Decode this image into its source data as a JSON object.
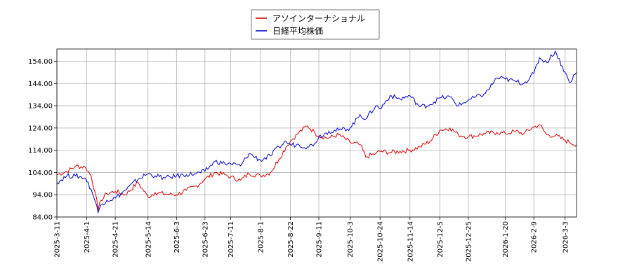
{
  "chart_data": {
    "type": "line",
    "title": "",
    "xlabel": "",
    "ylabel": "",
    "ylim": [
      84.0,
      159.5
    ],
    "xlim": [
      "2025-03-11",
      "2026-03-11"
    ],
    "grid": true,
    "legend_position": "top-center",
    "yticks": [
      "84.00",
      "94.00",
      "104.00",
      "114.00",
      "124.00",
      "134.00",
      "144.00",
      "154.00"
    ],
    "xticks": [
      "2025-3-11",
      "2025-4-1",
      "2025-4-21",
      "2025-5-14",
      "2025-6-3",
      "2025-6-23",
      "2025-7-11",
      "2025-8-1",
      "2025-8-22",
      "2025-9-11",
      "2025-10-3",
      "2025-10-24",
      "2025-11-14",
      "2025-12-5",
      "2025-12-25",
      "2026-1-20",
      "2026-2-9",
      "2026-3-3"
    ],
    "series": [
      {
        "name": "アソインターナショナル",
        "color": "#dd0000",
        "points": [
          [
            "2025-03-11",
            103.0
          ],
          [
            "2025-03-18",
            104.5
          ],
          [
            "2025-03-24",
            106.8
          ],
          [
            "2025-03-31",
            106.5
          ],
          [
            "2025-04-04",
            102.5
          ],
          [
            "2025-04-07",
            95.0
          ],
          [
            "2025-04-09",
            87.0
          ],
          [
            "2025-04-11",
            91.5
          ],
          [
            "2025-04-15",
            94.5
          ],
          [
            "2025-04-21",
            95.5
          ],
          [
            "2025-04-28",
            94.0
          ],
          [
            "2025-05-07",
            99.5
          ],
          [
            "2025-05-14",
            93.0
          ],
          [
            "2025-05-19",
            95.0
          ],
          [
            "2025-05-26",
            94.3
          ],
          [
            "2025-06-03",
            94.0
          ],
          [
            "2025-06-10",
            96.0
          ],
          [
            "2025-06-17",
            98.0
          ],
          [
            "2025-06-23",
            101.0
          ],
          [
            "2025-06-30",
            104.0
          ],
          [
            "2025-07-07",
            103.0
          ],
          [
            "2025-07-11",
            102.0
          ],
          [
            "2025-07-18",
            100.5
          ],
          [
            "2025-07-24",
            103.5
          ],
          [
            "2025-08-01",
            102.5
          ],
          [
            "2025-08-08",
            104.0
          ],
          [
            "2025-08-14",
            110.0
          ],
          [
            "2025-08-19",
            115.5
          ],
          [
            "2025-08-22",
            118.0
          ],
          [
            "2025-08-28",
            122.0
          ],
          [
            "2025-09-03",
            125.0
          ],
          [
            "2025-09-08",
            122.0
          ],
          [
            "2025-09-11",
            120.5
          ],
          [
            "2025-09-18",
            119.5
          ],
          [
            "2025-09-25",
            121.0
          ],
          [
            "2025-10-03",
            117.5
          ],
          [
            "2025-10-10",
            116.5
          ],
          [
            "2025-10-14",
            111.0
          ],
          [
            "2025-10-21",
            112.5
          ],
          [
            "2025-10-24",
            113.5
          ],
          [
            "2025-10-31",
            113.0
          ],
          [
            "2025-11-07",
            113.5
          ],
          [
            "2025-11-14",
            114.0
          ],
          [
            "2025-11-21",
            115.5
          ],
          [
            "2025-11-28",
            118.0
          ],
          [
            "2025-12-05",
            123.0
          ],
          [
            "2025-12-12",
            124.0
          ],
          [
            "2025-12-18",
            121.0
          ],
          [
            "2025-12-25",
            120.0
          ],
          [
            "2026-01-06",
            121.5
          ],
          [
            "2026-01-14",
            122.0
          ],
          [
            "2026-01-20",
            121.5
          ],
          [
            "2026-01-27",
            122.5
          ],
          [
            "2026-02-02",
            121.5
          ],
          [
            "2026-02-09",
            124.5
          ],
          [
            "2026-02-13",
            125.5
          ],
          [
            "2026-02-18",
            121.0
          ],
          [
            "2026-02-24",
            120.5
          ],
          [
            "2026-03-03",
            118.5
          ],
          [
            "2026-03-06",
            117.5
          ],
          [
            "2026-03-11",
            116.5
          ]
        ]
      },
      {
        "name": "日経平均株価",
        "color": "#0000cc",
        "points": [
          [
            "2025-03-11",
            99.5
          ],
          [
            "2025-03-18",
            102.5
          ],
          [
            "2025-03-24",
            102.5
          ],
          [
            "2025-03-31",
            101.5
          ],
          [
            "2025-04-04",
            96.5
          ],
          [
            "2025-04-07",
            91.0
          ],
          [
            "2025-04-09",
            86.0
          ],
          [
            "2025-04-11",
            89.5
          ],
          [
            "2025-04-15",
            91.5
          ],
          [
            "2025-04-21",
            92.5
          ],
          [
            "2025-04-28",
            96.0
          ],
          [
            "2025-05-07",
            101.0
          ],
          [
            "2025-05-14",
            103.5
          ],
          [
            "2025-05-19",
            102.5
          ],
          [
            "2025-05-26",
            101.5
          ],
          [
            "2025-06-03",
            102.5
          ],
          [
            "2025-06-10",
            103.0
          ],
          [
            "2025-06-17",
            103.5
          ],
          [
            "2025-06-23",
            104.5
          ],
          [
            "2025-06-30",
            109.0
          ],
          [
            "2025-07-07",
            108.0
          ],
          [
            "2025-07-11",
            108.0
          ],
          [
            "2025-07-18",
            107.0
          ],
          [
            "2025-07-24",
            112.5
          ],
          [
            "2025-08-01",
            109.5
          ],
          [
            "2025-08-08",
            111.5
          ],
          [
            "2025-08-14",
            115.5
          ],
          [
            "2025-08-19",
            118.0
          ],
          [
            "2025-08-22",
            116.5
          ],
          [
            "2025-08-28",
            116.5
          ],
          [
            "2025-09-03",
            115.5
          ],
          [
            "2025-09-08",
            117.0
          ],
          [
            "2025-09-11",
            120.0
          ],
          [
            "2025-09-18",
            122.5
          ],
          [
            "2025-09-25",
            123.0
          ],
          [
            "2025-10-03",
            124.0
          ],
          [
            "2025-10-10",
            130.0
          ],
          [
            "2025-10-14",
            128.0
          ],
          [
            "2025-10-21",
            134.0
          ],
          [
            "2025-10-24",
            132.5
          ],
          [
            "2025-10-31",
            138.5
          ],
          [
            "2025-11-07",
            137.0
          ],
          [
            "2025-11-14",
            138.5
          ],
          [
            "2025-11-21",
            133.5
          ],
          [
            "2025-11-28",
            134.5
          ],
          [
            "2025-12-05",
            137.5
          ],
          [
            "2025-12-12",
            138.0
          ],
          [
            "2025-12-18",
            134.0
          ],
          [
            "2025-12-25",
            136.5
          ],
          [
            "2026-01-06",
            139.5
          ],
          [
            "2026-01-14",
            146.5
          ],
          [
            "2026-01-20",
            146.0
          ],
          [
            "2026-01-27",
            145.0
          ],
          [
            "2026-02-02",
            144.0
          ],
          [
            "2026-02-09",
            148.5
          ],
          [
            "2026-02-13",
            155.5
          ],
          [
            "2026-02-18",
            153.5
          ],
          [
            "2026-02-24",
            158.5
          ],
          [
            "2026-03-03",
            149.0
          ],
          [
            "2026-03-06",
            144.5
          ],
          [
            "2026-03-11",
            149.0
          ]
        ]
      }
    ]
  }
}
